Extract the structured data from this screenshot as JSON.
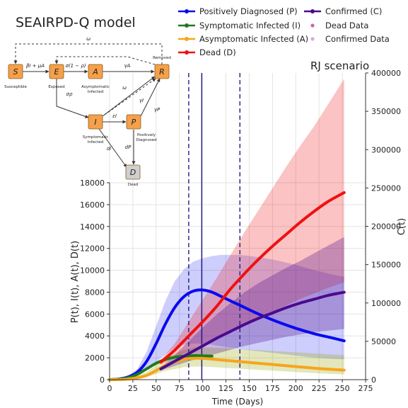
{
  "diagram": {
    "title": "SEAIRPD-Q model",
    "nodes": [
      {
        "id": "S",
        "label": "S",
        "caption": "Susceptible",
        "color": "#f5a04a"
      },
      {
        "id": "E",
        "label": "E",
        "caption": "Exposed",
        "color": "#f5a04a"
      },
      {
        "id": "A",
        "label": "A",
        "caption": "Asymptomatic Infected",
        "color": "#f5a04a"
      },
      {
        "id": "R",
        "label": "R",
        "caption": "Removed",
        "color": "#f5a04a"
      },
      {
        "id": "I",
        "label": "I",
        "caption": "Symptomatic Infected",
        "color": "#f5a04a"
      },
      {
        "id": "P",
        "label": "P",
        "caption": "Positively Diagnosed",
        "color": "#f5a04a"
      },
      {
        "id": "D",
        "label": "D",
        "caption": "Dead",
        "color": "#cfcfcf"
      }
    ],
    "edge_labels": {
      "omega_top": "ω",
      "omega_mid": "ω",
      "omega_diag": "ω",
      "se": "βI + μA",
      "ea": "σ(1 − ρ)",
      "ar": "γA",
      "ei": "σρ",
      "ir": "γI",
      "ip": "εI",
      "pr": "γP",
      "id": "dI",
      "pd": "dP"
    }
  },
  "chart_data": {
    "type": "line",
    "title": "RJ scenario",
    "xlabel": "Time (Days)",
    "ylabel_left": "P(t), I(t), A(t), D(t)",
    "ylabel_right": "C(t)",
    "xlim": [
      0,
      275
    ],
    "ylim_left": [
      0,
      18000
    ],
    "ylim_right": [
      0,
      400000
    ],
    "x_ticks": [
      0,
      25,
      50,
      75,
      100,
      125,
      150,
      175,
      200,
      225,
      250,
      275
    ],
    "y_ticks_left": [
      0,
      2000,
      4000,
      6000,
      8000,
      10000,
      12000,
      14000,
      16000,
      18000
    ],
    "y_ticks_right": [
      0,
      50000,
      100000,
      150000,
      200000,
      250000,
      300000,
      350000,
      400000
    ],
    "grid": true,
    "legend_position": "top-right",
    "vlines": [
      {
        "x": 85,
        "style": "dashed"
      },
      {
        "x": 99,
        "style": "solid"
      },
      {
        "x": 140,
        "style": "dashed"
      }
    ],
    "series": [
      {
        "name": "Positively Diagnosed (P)",
        "color": "#0a0aee",
        "axis": "left",
        "x": [
          0,
          10,
          20,
          30,
          40,
          50,
          60,
          70,
          80,
          90,
          100,
          110,
          120,
          140,
          160,
          180,
          200,
          220,
          240,
          252
        ],
        "y": [
          0,
          60,
          250,
          700,
          1700,
          3300,
          5100,
          6600,
          7600,
          8100,
          8200,
          8000,
          7600,
          6800,
          6000,
          5300,
          4700,
          4200,
          3800,
          3550
        ],
        "band_lower": [
          0,
          40,
          150,
          400,
          900,
          1600,
          2300,
          2900,
          3200,
          3300,
          3300,
          3200,
          3050,
          2800,
          2600,
          2400,
          2200,
          2000,
          1900,
          1850
        ],
        "band_upper": [
          0,
          80,
          350,
          1000,
          2600,
          4900,
          7200,
          9000,
          10100,
          10800,
          11100,
          11300,
          11400,
          11400,
          11200,
          10900,
          10500,
          10000,
          9600,
          9400
        ]
      },
      {
        "name": "Symptomatic Infected (I)",
        "color": "#1f7a1f",
        "axis": "left",
        "x": [
          0,
          10,
          20,
          30,
          40,
          50,
          60,
          70,
          80,
          90,
          100,
          110
        ],
        "y": [
          0,
          50,
          180,
          500,
          1000,
          1500,
          1850,
          2050,
          2150,
          2200,
          2180,
          2150
        ]
      },
      {
        "name": "Asymptomatic Infected (A)",
        "color": "#f7a51c",
        "axis": "left",
        "x": [
          0,
          20,
          40,
          60,
          80,
          90,
          100,
          120,
          140,
          160,
          180,
          200,
          220,
          240,
          252
        ],
        "y": [
          0,
          60,
          400,
          1300,
          1850,
          1950,
          1950,
          1800,
          1650,
          1500,
          1350,
          1200,
          1050,
          930,
          870
        ],
        "band_lower": [
          0,
          40,
          250,
          800,
          1150,
          1200,
          1200,
          1100,
          1000,
          900,
          800,
          700,
          600,
          520,
          480
        ],
        "band_upper": [
          0,
          100,
          700,
          2000,
          2700,
          2900,
          2950,
          2900,
          2800,
          2700,
          2600,
          2500,
          2400,
          2300,
          2250
        ]
      },
      {
        "name": "Dead (D)",
        "color": "#ee1111",
        "axis": "left",
        "x": [
          55,
          70,
          85,
          100,
          115,
          130,
          145,
          160,
          175,
          190,
          205,
          220,
          235,
          252
        ],
        "y": [
          1600,
          2700,
          4000,
          5300,
          6700,
          8300,
          9700,
          11000,
          12200,
          13300,
          14400,
          15400,
          16300,
          17100
        ],
        "band_lower": [
          1400,
          2000,
          2600,
          3100,
          3700,
          4300,
          5000,
          5600,
          6200,
          6800,
          7400,
          7900,
          8400,
          8900
        ],
        "band_upper": [
          1800,
          3300,
          5300,
          7300,
          9300,
          11400,
          13500,
          15500,
          17500,
          19500,
          21400,
          23200,
          25200,
          27500
        ]
      },
      {
        "name": "Confirmed (C)",
        "color": "#4b0a8c",
        "axis": "right",
        "x": [
          55,
          70,
          85,
          100,
          115,
          130,
          145,
          160,
          175,
          190,
          205,
          220,
          235,
          252
        ],
        "y": [
          14000,
          24000,
          34000,
          44000,
          54000,
          63000,
          72000,
          80000,
          87000,
          94000,
          100000,
          105000,
          110000,
          114000
        ],
        "band_lower": [
          12000,
          18000,
          24000,
          29000,
          34000,
          39000,
          44000,
          48000,
          52000,
          56000,
          59000,
          62000,
          64000,
          66000
        ],
        "band_upper": [
          16000,
          32000,
          50000,
          68000,
          85000,
          100000,
          114000,
          126000,
          136000,
          146000,
          155000,
          165000,
          175000,
          186000
        ]
      },
      {
        "name": "Dead Data",
        "color": "#c46aa8",
        "axis": "left",
        "x": [],
        "y": []
      },
      {
        "name": "Confirmed Data",
        "color": "#dca6e0",
        "axis": "right",
        "x": [],
        "y": []
      }
    ]
  }
}
